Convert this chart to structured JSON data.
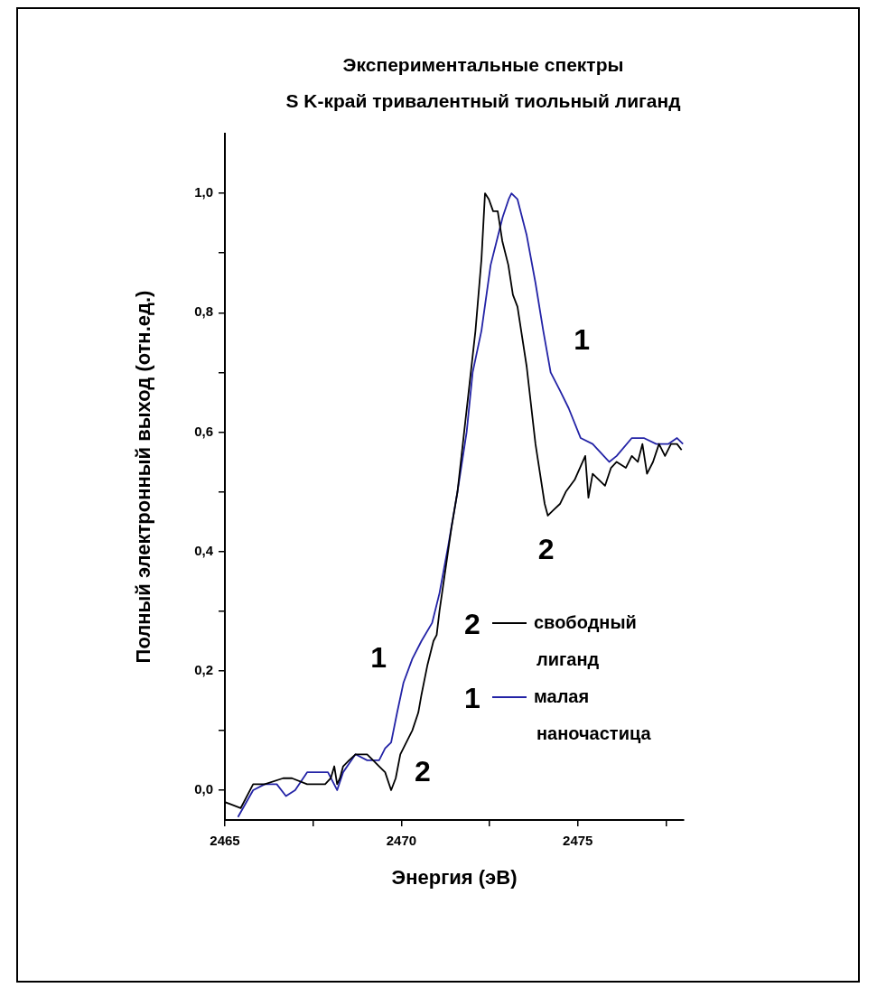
{
  "chart_data": {
    "type": "line",
    "title": "Экспериментальные спектры",
    "subtitle": "S K-край тривалентный тиольный лиганд",
    "xlabel": "Энергия (эВ)",
    "ylabel": "Полный электронный выход (отн.ед.)",
    "xlim": [
      2465,
      2478
    ],
    "xticks": [
      2465,
      {
        "value": 2467.5,
        "label": null
      },
      2470,
      {
        "value": 2472.5,
        "label": null
      },
      2475,
      {
        "value": 2477.5,
        "label": null
      }
    ],
    "ylim": [
      -0.05,
      1.1
    ],
    "yticks": [
      {
        "value": 0,
        "label": "0,0"
      },
      {
        "value": 0.1,
        "label": null
      },
      {
        "value": 0.2,
        "label": "0,2"
      },
      {
        "value": 0.3,
        "label": null
      },
      {
        "value": 0.4,
        "label": "0,4"
      },
      {
        "value": 0.5,
        "label": null
      },
      {
        "value": 0.6,
        "label": "0,6"
      },
      {
        "value": 0.7,
        "label": null
      },
      {
        "value": 0.8,
        "label": "0,8"
      },
      {
        "value": 0.9,
        "label": null
      },
      {
        "value": 1.0,
        "label": "1,0"
      }
    ],
    "grid": false,
    "legend": "bottom right",
    "marker": "none",
    "line_style": "solid",
    "series": [
      {
        "name": "свободный лиганд",
        "color": "#000000",
        "x": [
          2465.0,
          2465.45,
          2465.8,
          2466.13,
          2466.65,
          2466.9,
          2467.33,
          2467.5,
          2467.84,
          2468.0,
          2468.1,
          2468.18,
          2468.26,
          2468.35,
          2468.52,
          2468.7,
          2468.86,
          2469.03,
          2469.2,
          2469.37,
          2469.54,
          2469.71,
          2469.84,
          2469.97,
          2470.14,
          2470.31,
          2470.48,
          2470.57,
          2470.74,
          2470.91,
          2471.0,
          2471.08,
          2471.25,
          2471.42,
          2471.59,
          2471.76,
          2471.93,
          2472.1,
          2472.27,
          2472.37,
          2472.48,
          2472.6,
          2472.73,
          2472.86,
          2473.03,
          2473.16,
          2473.29,
          2473.55,
          2473.8,
          2474.06,
          2474.15,
          2474.32,
          2474.5,
          2474.66,
          2474.91,
          2475.21,
          2475.3,
          2475.42,
          2475.77,
          2475.94,
          2476.1,
          2476.36,
          2476.53,
          2476.7,
          2476.83,
          2476.96,
          2477.13,
          2477.3,
          2477.47,
          2477.64,
          2477.81,
          2477.94
        ],
        "values": [
          -0.02,
          -0.03,
          0.01,
          0.01,
          0.02,
          0.02,
          0.01,
          0.01,
          0.01,
          0.02,
          0.04,
          0.01,
          0.02,
          0.04,
          0.05,
          0.06,
          0.06,
          0.06,
          0.05,
          0.04,
          0.03,
          0.0,
          0.02,
          0.06,
          0.08,
          0.1,
          0.13,
          0.16,
          0.21,
          0.25,
          0.26,
          0.3,
          0.37,
          0.44,
          0.5,
          0.59,
          0.68,
          0.77,
          0.89,
          1.0,
          0.99,
          0.97,
          0.97,
          0.92,
          0.88,
          0.83,
          0.81,
          0.71,
          0.58,
          0.48,
          0.46,
          0.47,
          0.48,
          0.5,
          0.52,
          0.56,
          0.49,
          0.53,
          0.51,
          0.54,
          0.55,
          0.54,
          0.56,
          0.55,
          0.58,
          0.53,
          0.55,
          0.58,
          0.56,
          0.58,
          0.58,
          0.57
        ]
      },
      {
        "name": "малая наночастица",
        "color": "#2323a6",
        "x": [
          2465.37,
          2465.8,
          2466.13,
          2466.47,
          2466.73,
          2466.99,
          2467.33,
          2467.67,
          2467.92,
          2468.18,
          2468.35,
          2468.7,
          2469.03,
          2469.37,
          2469.54,
          2469.71,
          2469.88,
          2470.06,
          2470.31,
          2470.57,
          2470.87,
          2471.08,
          2471.33,
          2471.59,
          2471.85,
          2472.02,
          2472.27,
          2472.53,
          2472.87,
          2473.04,
          2473.12,
          2473.29,
          2473.55,
          2473.8,
          2474.02,
          2474.23,
          2474.49,
          2474.74,
          2475.08,
          2475.42,
          2475.89,
          2476.1,
          2476.53,
          2476.87,
          2477.22,
          2477.56,
          2477.81,
          2477.98
        ],
        "values": [
          -0.045,
          0.0,
          0.01,
          0.01,
          -0.01,
          0.0,
          0.03,
          0.03,
          0.03,
          0.0,
          0.03,
          0.06,
          0.05,
          0.05,
          0.07,
          0.08,
          0.13,
          0.18,
          0.22,
          0.25,
          0.28,
          0.33,
          0.41,
          0.5,
          0.6,
          0.7,
          0.77,
          0.88,
          0.96,
          0.99,
          1.0,
          0.99,
          0.93,
          0.85,
          0.77,
          0.7,
          0.67,
          0.64,
          0.59,
          0.58,
          0.55,
          0.56,
          0.59,
          0.59,
          0.58,
          0.58,
          0.59,
          0.58
        ]
      }
    ],
    "annotations": [
      "2",
      "1",
      "1",
      "2",
      "1",
      "2"
    ]
  }
}
